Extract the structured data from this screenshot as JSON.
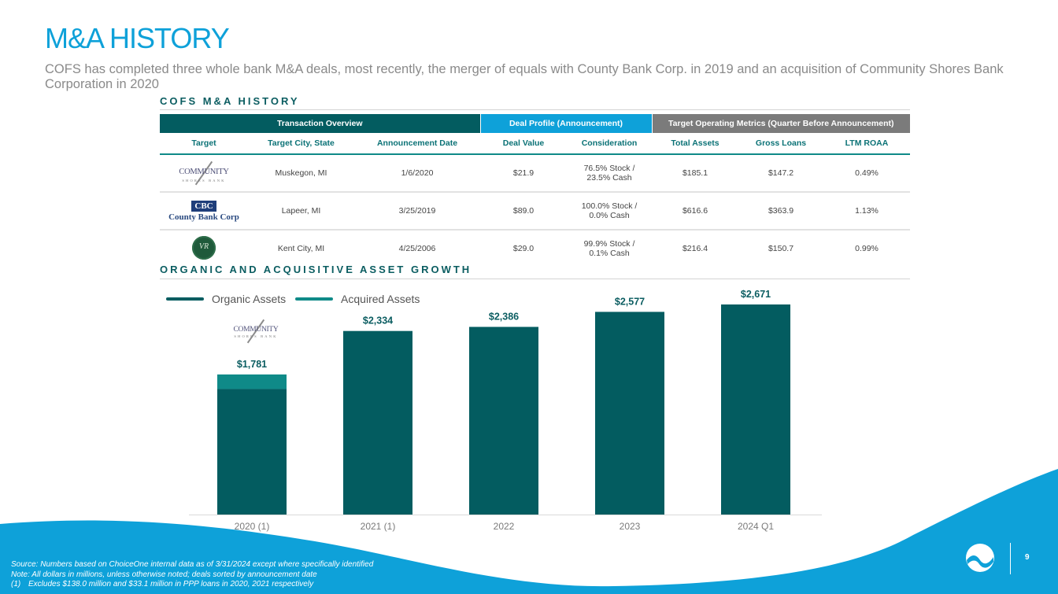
{
  "slide": {
    "title": "M&A HISTORY",
    "subtitle": "COFS has completed three whole bank M&A deals, most recently, the merger of equals with County Bank Corp. in 2019 and an acquisition of Community Shores Bank Corporation in 2020",
    "page_number": "9"
  },
  "colors": {
    "brand_blue": "#0ea1d9",
    "teal_dark": "#035c60",
    "teal_light": "#0f8a88",
    "gray_header": "#7b7b7b"
  },
  "ma_table": {
    "heading": "COFS M&A HISTORY",
    "group_headers": [
      "Transaction Overview",
      "Deal Profile (Announcement)",
      "Target Operating Metrics (Quarter Before Announcement)"
    ],
    "columns": [
      "Target",
      "Target City, State",
      "Announcement Date",
      "Deal Value",
      "Consideration",
      "Total Assets",
      "Gross Loans",
      "LTM ROAA"
    ],
    "rows": [
      {
        "target_logo": "community-shores-bank-logo",
        "logo_text": [
          "COMMUNITY",
          "SHORES BANK"
        ],
        "city_state": "Muskegon, MI",
        "announcement_date": "1/6/2020",
        "deal_value": "$21.9",
        "consideration": [
          "76.5% Stock /",
          "23.5% Cash"
        ],
        "total_assets": "$185.1",
        "gross_loans": "$147.2",
        "ltm_roaa": "0.49%"
      },
      {
        "target_logo": "county-bank-corp-logo",
        "logo_text": [
          "CBC",
          "County Bank Corp"
        ],
        "city_state": "Lapeer, MI",
        "announcement_date": "3/25/2019",
        "deal_value": "$89.0",
        "consideration": [
          "100.0% Stock /",
          "0.0% Cash"
        ],
        "total_assets": "$616.6",
        "gross_loans": "$363.9",
        "ltm_roaa": "1.13%"
      },
      {
        "target_logo": "valley-ridge-bank-logo",
        "logo_text": [
          "VR"
        ],
        "city_state": "Kent City, MI",
        "announcement_date": "4/25/2006",
        "deal_value": "$29.0",
        "consideration": [
          "99.9% Stock /",
          "0.1% Cash"
        ],
        "total_assets": "$216.4",
        "gross_loans": "$150.7",
        "ltm_roaa": "0.99%"
      }
    ]
  },
  "chart_section": {
    "heading": "ORGANIC AND ACQUISITIVE ASSET GROWTH",
    "annotation_logo_text": [
      "COMMUNITY",
      "SHORES BANK"
    ]
  },
  "chart_data": {
    "type": "bar",
    "stacked": true,
    "title": "ORGANIC AND ACQUISITIVE ASSET GROWTH",
    "xlabel": "",
    "ylabel": "",
    "categories": [
      "2020 (1)",
      "2021 (1)",
      "2022",
      "2023",
      "2024 Q1"
    ],
    "series": [
      {
        "name": "Organic Assets",
        "color": "#035c60",
        "values": [
          1596,
          2334,
          2386,
          2577,
          2671
        ]
      },
      {
        "name": "Acquired Assets",
        "color": "#0f8a88",
        "values": [
          185,
          0,
          0,
          0,
          0
        ]
      }
    ],
    "totals_labels": [
      "$1,781",
      "$2,334",
      "$2,386",
      "$2,577",
      "$2,671"
    ],
    "totals": [
      1781,
      2334,
      2386,
      2577,
      2671
    ],
    "ylim": [
      0,
      2671
    ],
    "grid": false,
    "legend_position": "top-left",
    "annotations": [
      {
        "category": "2020 (1)",
        "type": "logo",
        "label": "Community Shores Bank"
      }
    ]
  },
  "footnotes": {
    "source": "Source: Numbers based on ChoiceOne internal data as of 3/31/2024 except where specifically identified",
    "note": "Note: All dollars in millions, unless otherwise noted; deals sorted by announcement date",
    "fn1_num": "(1)",
    "fn1_text": "Excludes $138.0 million and $33.1 million in PPP loans in 2020, 2021 respectively"
  }
}
